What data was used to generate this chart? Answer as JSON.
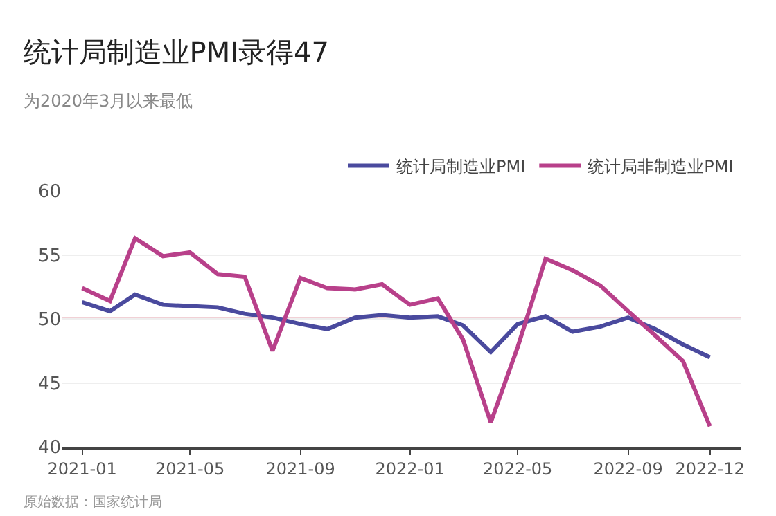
{
  "chart_data": {
    "type": "line",
    "title": "统计局制造业PMI录得47",
    "subtitle": "为2020年3月以来最低",
    "x": [
      "2021-01",
      "2021-02",
      "2021-03",
      "2021-04",
      "2021-05",
      "2021-06",
      "2021-07",
      "2021-08",
      "2021-09",
      "2021-10",
      "2021-11",
      "2021-12",
      "2022-01",
      "2022-02",
      "2022-03",
      "2022-04",
      "2022-05",
      "2022-06",
      "2022-07",
      "2022-08",
      "2022-09",
      "2022-10",
      "2022-11",
      "2022-12"
    ],
    "series": [
      {
        "name": "统计局制造业PMI",
        "color": "#4a4a9e",
        "values": [
          51.3,
          50.6,
          51.9,
          51.1,
          51.0,
          50.9,
          50.4,
          50.1,
          49.6,
          49.2,
          50.1,
          50.3,
          50.1,
          50.2,
          49.5,
          47.4,
          49.6,
          50.2,
          49.0,
          49.4,
          50.1,
          49.2,
          48.0,
          47.0
        ]
      },
      {
        "name": "统计局非制造业PMI",
        "color": "#b8408a",
        "values": [
          52.4,
          51.4,
          56.3,
          54.9,
          55.2,
          53.5,
          53.3,
          47.5,
          53.2,
          52.4,
          52.3,
          52.7,
          51.1,
          51.6,
          48.4,
          41.9,
          47.8,
          54.7,
          53.8,
          52.6,
          50.6,
          48.7,
          46.7,
          41.6
        ]
      }
    ],
    "xlim": [
      "2020-12-10",
      "2023-01-05"
    ],
    "xticks": [
      {
        "value": "2021-01",
        "label": "2021-01"
      },
      {
        "value": "2021-05",
        "label": "2021-05"
      },
      {
        "value": "2021-09",
        "label": "2021-09"
      },
      {
        "value": "2022-01",
        "label": "2022-01"
      },
      {
        "value": "2022-05",
        "label": "2022-05"
      },
      {
        "value": "2022-09",
        "label": "2022-09"
      },
      {
        "value": "2022-12",
        "label": "2022-12"
      }
    ],
    "ylim": [
      40,
      60
    ],
    "yticks": [
      40,
      45,
      50,
      55,
      60
    ],
    "ref_lines": [
      {
        "axis": "y",
        "value": 50,
        "color": "#c8465a"
      }
    ],
    "grid": "y",
    "legend": "top right",
    "marker": "none",
    "line_style": "solid",
    "annotations": [
      "原始数据：国家统计局"
    ]
  }
}
